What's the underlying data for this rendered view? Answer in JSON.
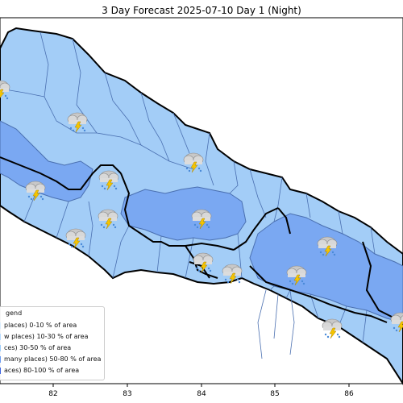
{
  "title": "3 Day Forecast 2025-07-10 Day 1 (Night)",
  "x_ticks": [
    "82",
    "83",
    "84",
    "85",
    "86"
  ],
  "legend": {
    "title": "gend",
    "items": [
      {
        "label": "places)  0-10 % of area",
        "color": "#dbeeff"
      },
      {
        "label": "w places) 10-30 % of area",
        "color": "#b9dcff"
      },
      {
        "label": "ces) 30-50  % of area",
        "color": "#9ccdfa"
      },
      {
        "label": "many places) 50-80 % of area",
        "color": "#6b9bf0"
      },
      {
        "label": "aces) 80-100 % of area",
        "color": "#3f64e0"
      }
    ]
  },
  "colors": {
    "light": "#a3cdf7",
    "medium": "#7aa8f2",
    "dark_border": "#000000",
    "district_border": "#4a6fb0"
  },
  "weather_icon": "thunderstorm-rain-icon"
}
